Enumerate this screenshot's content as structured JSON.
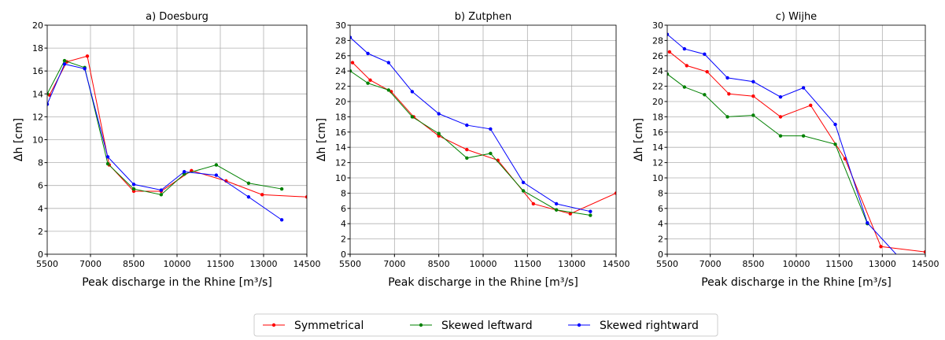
{
  "chart_data": [
    {
      "type": "line",
      "title": "a) Doesburg",
      "x_label": "Peak discharge in the Rhine [m³/s]",
      "y_label": "Δh [cm]",
      "xlim": [
        5500,
        14500
      ],
      "xticks": [
        5500,
        7000,
        8500,
        10000,
        11500,
        13000,
        14500
      ],
      "ylim": [
        0,
        20
      ],
      "yticks": [
        0,
        2,
        4,
        6,
        8,
        10,
        12,
        14,
        16,
        18,
        20
      ],
      "grid": true,
      "series": [
        {
          "name": "Symmetrical",
          "color": "#ff0000",
          "x": [
            5580,
            6180,
            6890,
            7650,
            8500,
            9450,
            10500,
            11700,
            12950,
            14500
          ],
          "values": [
            13.9,
            16.8,
            17.3,
            7.8,
            5.5,
            5.5,
            7.3,
            6.4,
            5.2,
            5.0
          ]
        },
        {
          "name": "Skewed leftward",
          "color": "#008000",
          "x": [
            5500,
            6100,
            6800,
            7600,
            8500,
            9450,
            10250,
            11360,
            12480,
            13630
          ],
          "values": [
            14.0,
            16.9,
            16.3,
            7.9,
            5.7,
            5.2,
            7.0,
            7.8,
            6.2,
            5.7
          ]
        },
        {
          "name": "Skewed rightward",
          "color": "#0000ff",
          "x": [
            5500,
            6100,
            6800,
            7600,
            8500,
            9450,
            10250,
            11360,
            12480,
            13630
          ],
          "values": [
            13.1,
            16.6,
            16.2,
            8.5,
            6.1,
            5.6,
            7.2,
            6.9,
            5.0,
            3.0
          ]
        }
      ]
    },
    {
      "type": "line",
      "title": "b) Zutphen",
      "x_label": "Peak discharge in the Rhine [m³/s]",
      "y_label": "Δh [cm]",
      "xlim": [
        5500,
        14500
      ],
      "xticks": [
        5500,
        7000,
        8500,
        10000,
        11500,
        13000,
        14500
      ],
      "ylim": [
        0,
        30
      ],
      "yticks": [
        0,
        2,
        4,
        6,
        8,
        10,
        12,
        14,
        16,
        18,
        20,
        22,
        24,
        26,
        28,
        30
      ],
      "grid": true,
      "series": [
        {
          "name": "Symmetrical",
          "color": "#ff0000",
          "x": [
            5580,
            6180,
            6890,
            7650,
            8500,
            9450,
            10500,
            11700,
            12950,
            14500
          ],
          "values": [
            25.1,
            22.8,
            21.3,
            18.0,
            15.5,
            13.7,
            12.3,
            6.6,
            5.3,
            8.0
          ]
        },
        {
          "name": "Skewed leftward",
          "color": "#008000",
          "x": [
            5500,
            6100,
            6800,
            7600,
            8500,
            9450,
            10250,
            11360,
            12480,
            13630
          ],
          "values": [
            24.0,
            22.4,
            21.5,
            18.0,
            15.8,
            12.6,
            13.2,
            8.3,
            5.8,
            5.1
          ]
        },
        {
          "name": "Skewed rightward",
          "color": "#0000ff",
          "x": [
            5500,
            6100,
            6800,
            7600,
            8500,
            9450,
            10250,
            11360,
            12480,
            13630
          ],
          "values": [
            28.4,
            26.3,
            25.1,
            21.3,
            18.4,
            16.9,
            16.4,
            9.4,
            6.6,
            5.6
          ]
        }
      ]
    },
    {
      "type": "line",
      "title": "c) Wijhe",
      "x_label": "Peak discharge in the Rhine [m³/s]",
      "y_label": "Δh [cm]",
      "xlim": [
        5500,
        14500
      ],
      "xticks": [
        5500,
        7000,
        8500,
        10000,
        11500,
        13000,
        14500
      ],
      "ylim": [
        0,
        30
      ],
      "yticks": [
        0,
        2,
        4,
        6,
        8,
        10,
        12,
        14,
        16,
        18,
        20,
        22,
        24,
        26,
        28,
        30
      ],
      "grid": true,
      "series": [
        {
          "name": "Symmetrical",
          "color": "#ff0000",
          "x": [
            5580,
            6180,
            6890,
            7650,
            8500,
            9450,
            10500,
            11700,
            12950,
            14500
          ],
          "values": [
            26.5,
            24.7,
            23.9,
            21.0,
            20.7,
            18.0,
            19.5,
            12.5,
            1.0,
            0.3
          ]
        },
        {
          "name": "Skewed leftward",
          "color": "#008000",
          "x": [
            5500,
            6100,
            6800,
            7600,
            8500,
            9450,
            10250,
            11360,
            12480,
            13630
          ],
          "values": [
            23.6,
            21.9,
            20.9,
            18.0,
            18.2,
            15.5,
            15.5,
            14.4,
            4.0,
            null
          ]
        },
        {
          "name": "Skewed rightward",
          "color": "#0000ff",
          "x": [
            5500,
            6100,
            6800,
            7600,
            8500,
            9450,
            10250,
            11360,
            12480,
            13630
          ],
          "values": [
            28.8,
            26.9,
            26.2,
            23.1,
            22.6,
            20.6,
            21.8,
            17.0,
            4.1,
            -0.6
          ]
        }
      ]
    }
  ]
}
